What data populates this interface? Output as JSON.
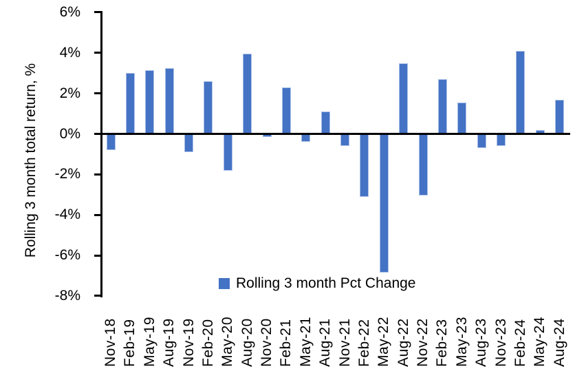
{
  "chart": {
    "y_axis_title": "Rolling 3 month total return, %",
    "legend_label": "Rolling 3 month Pct Change",
    "bar_color": "#4472C4",
    "bar_border_color": "#A9C0E8",
    "axis_color": "#000000",
    "background_color": "#FFFFFF"
  },
  "chart_data": {
    "type": "bar",
    "title": "",
    "xlabel": "",
    "ylabel": "Rolling 3 month total return, %",
    "categories": [
      "Nov-18",
      "Feb-19",
      "May-19",
      "Aug-19",
      "Nov-19",
      "Feb-20",
      "May-20",
      "Aug-20",
      "Nov-20",
      "Feb-21",
      "May-21",
      "Aug-21",
      "Nov-21",
      "Feb-22",
      "May-22",
      "Aug-22",
      "Nov-22",
      "Feb-23",
      "May-23",
      "Aug-23",
      "Nov-23",
      "Feb-24",
      "May-24",
      "Aug-24"
    ],
    "values": [
      -0.8,
      3.0,
      3.15,
      3.25,
      -0.9,
      2.6,
      -1.8,
      3.95,
      -0.15,
      2.3,
      -0.4,
      1.1,
      -0.6,
      -3.1,
      -6.85,
      3.5,
      -3.05,
      2.7,
      1.55,
      -0.7,
      -0.6,
      4.1,
      0.2,
      1.7
    ],
    "ylim": [
      -8,
      6
    ],
    "ytick_values": [
      6,
      4,
      2,
      0,
      -2,
      -4,
      -6,
      -8
    ],
    "ytick_labels": [
      "6%",
      "4%",
      "2%",
      "0%",
      "-2%",
      "-4%",
      "-6%",
      "-8%"
    ],
    "grid": false,
    "legend": [
      "Rolling 3 month Pct Change"
    ],
    "legend_position": "bottom-center",
    "series_name": "Rolling 3 month Pct Change"
  }
}
